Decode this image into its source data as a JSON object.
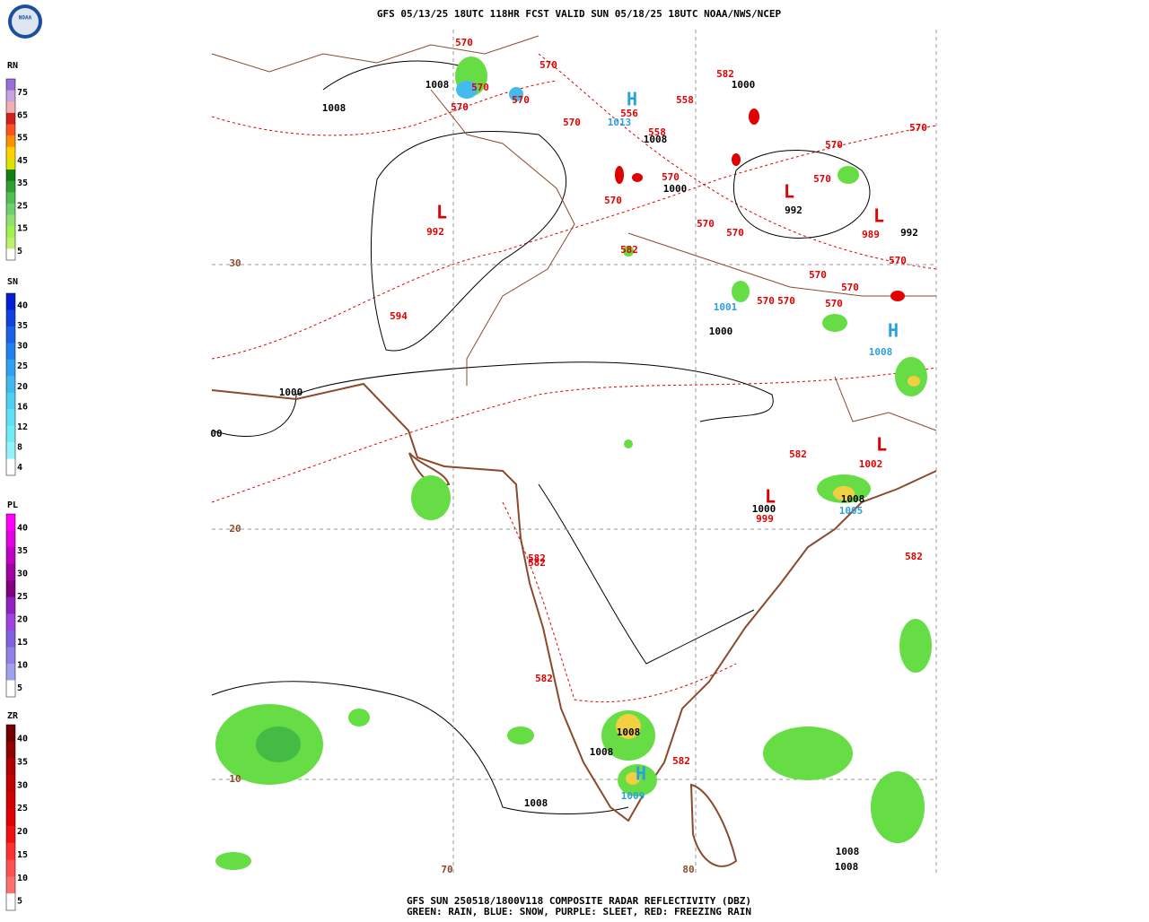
{
  "header": {
    "title": "GFS 05/13/25 18UTC 118HR FCST VALID SUN 05/18/25 18UTC NOAA/NWS/NCEP",
    "logo": "NOAA"
  },
  "legend": [
    {
      "title": "RN",
      "ticks": [
        75,
        65,
        55,
        45,
        35,
        25,
        15,
        5
      ]
    },
    {
      "title": "SN",
      "ticks": [
        40,
        35,
        30,
        25,
        20,
        16,
        12,
        8,
        4
      ]
    },
    {
      "title": "PL",
      "ticks": [
        40,
        35,
        30,
        25,
        20,
        15,
        10,
        5
      ]
    },
    {
      "title": "ZR",
      "ticks": [
        40,
        35,
        30,
        25,
        20,
        15,
        10,
        5
      ]
    }
  ],
  "map": {
    "labels": [
      "570",
      "570",
      "1008",
      "570",
      "570",
      "570",
      "1008",
      "582",
      "1000",
      "558",
      "H",
      "556",
      "1013",
      "570",
      "558",
      "1008",
      "570",
      "570",
      "570",
      "1000",
      "570",
      "L",
      "L",
      "570",
      "992",
      "L",
      "992",
      "570",
      "570",
      "989",
      "992",
      "582",
      "570",
      "30",
      "570",
      "570",
      "570",
      "570",
      "570",
      "1001",
      "594",
      "1000",
      "H",
      "1008",
      "1000",
      "00",
      "582",
      "L",
      "1002",
      "L",
      "1008",
      "1005",
      "1000",
      "999",
      "20",
      "582",
      "582",
      "582",
      "582",
      "1008",
      "1008",
      "582",
      "10",
      "H",
      "1009",
      "1008",
      "1008",
      "1008",
      "70",
      "80"
    ]
  },
  "footer": {
    "line1": "GFS SUN 250518/1800V118 COMPOSITE RADAR REFLECTIVITY (DBZ)",
    "line2": "GREEN: RAIN, BLUE: SNOW, PURPLE: SLEET, RED: FREEZING RAIN"
  }
}
